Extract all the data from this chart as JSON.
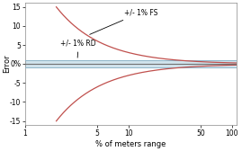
{
  "title": "",
  "xlabel": "% of meters range",
  "ylabel": "Error",
  "xlim_log": [
    1,
    110
  ],
  "ylim": [
    -16,
    16
  ],
  "yticks": [
    -15,
    -10,
    -5,
    0,
    5,
    10,
    15
  ],
  "xticks": [
    1,
    5,
    10,
    50,
    100
  ],
  "fs_label": "+/- 1% FS",
  "rd_label": "+/- 1% RD",
  "zero_label": "0%",
  "fs_color": "#c0504d",
  "rd_color": "#8db4c8",
  "rd_fill_color": "#c5dde8",
  "zero_line_color": "#707070",
  "background_color": "#ffffff",
  "fs_value": 15.0,
  "rd_value": 1.0,
  "x_start": 2.0,
  "x_end": 110.0
}
